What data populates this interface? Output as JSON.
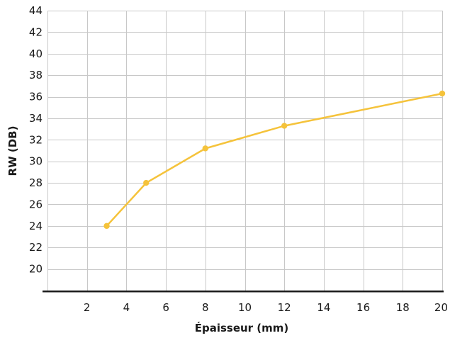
{
  "chart_data": {
    "type": "line",
    "xlabel": "Épaisseur (mm)",
    "ylabel": "RW (DB)",
    "xlim": [
      0,
      20
    ],
    "ylim": [
      18,
      44
    ],
    "x_ticks": [
      2,
      4,
      6,
      8,
      10,
      12,
      14,
      16,
      18,
      20
    ],
    "y_ticks": [
      20,
      22,
      24,
      26,
      28,
      30,
      32,
      34,
      36,
      38,
      40,
      42,
      44
    ],
    "x_tick_labels": [
      "2",
      "4",
      "6",
      "8",
      "10",
      "12",
      "14",
      "16",
      "18",
      "20"
    ],
    "y_tick_labels": [
      "20",
      "22",
      "24",
      "26",
      "28",
      "30",
      "32",
      "34",
      "36",
      "38",
      "40",
      "42",
      "44"
    ],
    "grid": true,
    "series": [
      {
        "color": "#f5c33b",
        "points": [
          {
            "x": 3,
            "y": 24.0
          },
          {
            "x": 5,
            "y": 28.0
          },
          {
            "x": 8,
            "y": 31.2
          },
          {
            "x": 12,
            "y": 33.3
          },
          {
            "x": 20,
            "y": 36.3
          }
        ]
      }
    ]
  }
}
